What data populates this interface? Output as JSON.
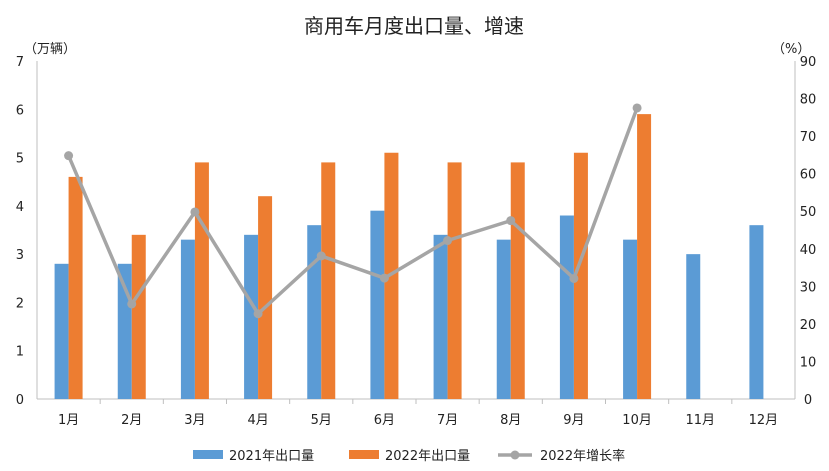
{
  "chart_data": {
    "type": "bar",
    "title": "商用车月度出口量、增速",
    "y_left_unit": "（万辆）",
    "y_right_unit": "（%）",
    "ylim_left": [
      0,
      7
    ],
    "ylim_right": [
      0,
      90
    ],
    "yticks_left": [
      "0",
      "1",
      "2",
      "3",
      "4",
      "5",
      "6",
      "7"
    ],
    "yticks_right": [
      "0",
      "10",
      "20",
      "30",
      "40",
      "50",
      "60",
      "70",
      "80",
      "90"
    ],
    "categories": [
      "1月",
      "2月",
      "3月",
      "4月",
      "5月",
      "6月",
      "7月",
      "8月",
      "9月",
      "10月",
      "11月",
      "12月"
    ],
    "series": [
      {
        "name": "2021年出口量",
        "kind": "bar",
        "axis": "left",
        "color": "#5b9bd5",
        "values": [
          2.8,
          2.8,
          3.3,
          3.4,
          3.6,
          3.9,
          3.4,
          3.3,
          3.8,
          3.3,
          3.0,
          3.6
        ]
      },
      {
        "name": "2022年出口量",
        "kind": "bar",
        "axis": "left",
        "color": "#ed7d31",
        "values": [
          4.6,
          3.4,
          4.9,
          4.2,
          4.9,
          5.1,
          4.9,
          4.9,
          5.1,
          5.9,
          null,
          null
        ]
      },
      {
        "name": "2022年增长率",
        "kind": "line",
        "axis": "right",
        "color": "#a5a5a5",
        "values": [
          64.8,
          25.3,
          49.8,
          22.7,
          38.1,
          32.2,
          42.2,
          47.5,
          32.1,
          77.5,
          null,
          null
        ]
      }
    ],
    "legend": "bottom",
    "grid": false
  }
}
